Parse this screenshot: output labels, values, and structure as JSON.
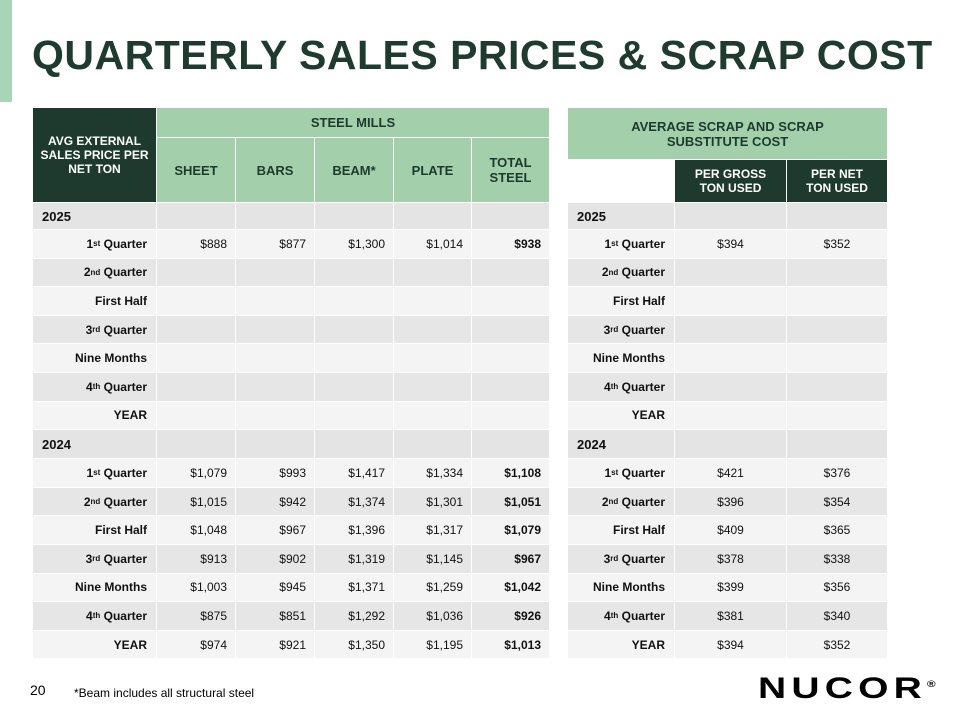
{
  "title": "QUARTERLY SALES PRICES & SCRAP COST",
  "steel": {
    "corner": "AVG EXTERNAL SALES PRICE PER NET TON",
    "group": "STEEL MILLS",
    "columns": [
      "SHEET",
      "BARS",
      "BEAM*",
      "PLATE",
      "TOTAL STEEL"
    ],
    "sections": [
      {
        "year": "2025",
        "rows": [
          {
            "label": {
              "num": "1",
              "sup": "st",
              "text": "Quarter"
            },
            "values": [
              "$888",
              "$877",
              "$1,300",
              "$1,014",
              "$938"
            ]
          },
          {
            "label": {
              "num": "2",
              "sup": "nd",
              "text": "Quarter"
            }
          },
          {
            "label": {
              "text": "First Half"
            }
          },
          {
            "label": {
              "num": "3",
              "sup": "rd",
              "text": "Quarter"
            }
          },
          {
            "label": {
              "text": "Nine Months"
            }
          },
          {
            "label": {
              "num": "4",
              "sup": "th",
              "text": "Quarter"
            }
          },
          {
            "label": {
              "text": "YEAR"
            }
          }
        ]
      },
      {
        "year": "2024",
        "rows": [
          {
            "label": {
              "num": "1",
              "sup": "st",
              "text": "Quarter"
            },
            "values": [
              "$1,079",
              "$993",
              "$1,417",
              "$1,334",
              "$1,108"
            ]
          },
          {
            "label": {
              "num": "2",
              "sup": "nd",
              "text": "Quarter"
            },
            "values": [
              "$1,015",
              "$942",
              "$1,374",
              "$1,301",
              "$1,051"
            ]
          },
          {
            "label": {
              "text": "First Half"
            },
            "values": [
              "$1,048",
              "$967",
              "$1,396",
              "$1,317",
              "$1,079"
            ]
          },
          {
            "label": {
              "num": "3",
              "sup": "rd",
              "text": "Quarter"
            },
            "values": [
              "$913",
              "$902",
              "$1,319",
              "$1,145",
              "$967"
            ]
          },
          {
            "label": {
              "text": "Nine Months"
            },
            "values": [
              "$1,003",
              "$945",
              "$1,371",
              "$1,259",
              "$1,042"
            ]
          },
          {
            "label": {
              "num": "4",
              "sup": "th",
              "text": "Quarter"
            },
            "values": [
              "$875",
              "$851",
              "$1,292",
              "$1,036",
              "$926"
            ]
          },
          {
            "label": {
              "text": "YEAR"
            },
            "values": [
              "$974",
              "$921",
              "$1,350",
              "$1,195",
              "$1,013"
            ]
          }
        ]
      }
    ]
  },
  "scrap": {
    "group": "AVERAGE SCRAP AND SCRAP SUBSTITUTE COST",
    "columns": [
      "PER GROSS TON USED",
      "PER NET TON USED"
    ],
    "sections": [
      {
        "year": "2025",
        "rows": [
          {
            "label": {
              "num": "1",
              "sup": "st",
              "text": "Quarter"
            },
            "values": [
              "$394",
              "$352"
            ]
          },
          {
            "label": {
              "num": "2",
              "sup": "nd",
              "text": "Quarter"
            }
          },
          {
            "label": {
              "text": "First Half"
            }
          },
          {
            "label": {
              "num": "3",
              "sup": "rd",
              "text": "Quarter"
            }
          },
          {
            "label": {
              "text": "Nine Months"
            }
          },
          {
            "label": {
              "num": "4",
              "sup": "th",
              "text": "Quarter"
            }
          },
          {
            "label": {
              "text": "YEAR"
            }
          }
        ]
      },
      {
        "year": "2024",
        "rows": [
          {
            "label": {
              "num": "1",
              "sup": "st",
              "text": "Quarter"
            },
            "values": [
              "$421",
              "$376"
            ]
          },
          {
            "label": {
              "num": "2",
              "sup": "nd",
              "text": "Quarter"
            },
            "values": [
              "$396",
              "$354"
            ]
          },
          {
            "label": {
              "text": "First Half"
            },
            "values": [
              "$409",
              "$365"
            ]
          },
          {
            "label": {
              "num": "3",
              "sup": "rd",
              "text": "Quarter"
            },
            "values": [
              "$378",
              "$338"
            ]
          },
          {
            "label": {
              "text": "Nine Months"
            },
            "values": [
              "$399",
              "$356"
            ]
          },
          {
            "label": {
              "num": "4",
              "sup": "th",
              "text": "Quarter"
            },
            "values": [
              "$381",
              "$340"
            ]
          },
          {
            "label": {
              "text": "YEAR"
            },
            "values": [
              "$394",
              "$352"
            ]
          }
        ]
      }
    ]
  },
  "footer": {
    "page": "20",
    "note": "*Beam includes all structural steel",
    "logo": "NUCOR",
    "reg": "®"
  }
}
